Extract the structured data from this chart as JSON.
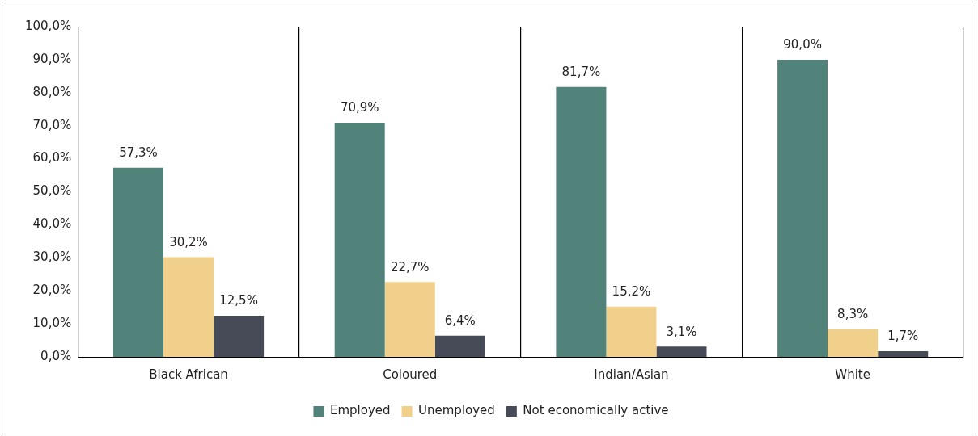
{
  "chart_data": {
    "type": "bar",
    "categories": [
      "Black African",
      "Coloured",
      "Indian/Asian",
      "White"
    ],
    "series": [
      {
        "name": "Employed",
        "color": "#52837b",
        "values": [
          57.3,
          70.9,
          81.7,
          90.0
        ],
        "value_labels": [
          "57,3%",
          "70,9%",
          "81,7%",
          "90,0%"
        ]
      },
      {
        "name": "Unemployed",
        "color": "#f0d08a",
        "values": [
          30.2,
          22.7,
          15.2,
          8.3
        ],
        "value_labels": [
          "30,2%",
          "22,7%",
          "15,2%",
          "8,3%"
        ]
      },
      {
        "name": "Not economically active",
        "color": "#474b57",
        "values": [
          12.5,
          6.4,
          3.1,
          1.7
        ],
        "value_labels": [
          "12,5%",
          "6,4%",
          "3,1%",
          "1,7%"
        ]
      }
    ],
    "ylim": [
      0,
      100
    ],
    "yticks": [
      {
        "value": 0,
        "label": "0,0%"
      },
      {
        "value": 10,
        "label": "10,0%"
      },
      {
        "value": 20,
        "label": "20,0%"
      },
      {
        "value": 30,
        "label": "30,0%"
      },
      {
        "value": 40,
        "label": "40,0%"
      },
      {
        "value": 50,
        "label": "50,0%"
      },
      {
        "value": 60,
        "label": "60,0%"
      },
      {
        "value": 70,
        "label": "70,0%"
      },
      {
        "value": 80,
        "label": "80,0%"
      },
      {
        "value": 90,
        "label": "90,0%"
      },
      {
        "value": 100,
        "label": "100,0%"
      }
    ],
    "grid": "x",
    "legend": "bottom"
  }
}
